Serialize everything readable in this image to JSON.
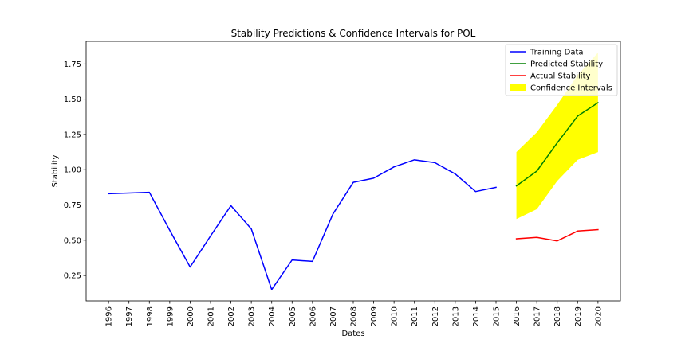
{
  "chart_data": {
    "type": "line",
    "title": "Stability Predictions & Confidence Intervals for POL",
    "xlabel": "Dates",
    "ylabel": "Stability",
    "xlim": [
      1994.9,
      2021.1
    ],
    "ylim": [
      0.07,
      1.91
    ],
    "x_ticks": [
      "1996",
      "1997",
      "1998",
      "1999",
      "2000",
      "2001",
      "2002",
      "2003",
      "2004",
      "2005",
      "2006",
      "2007",
      "2008",
      "2009",
      "2010",
      "2011",
      "2012",
      "2013",
      "2014",
      "2015",
      "2016",
      "2017",
      "2018",
      "2019",
      "2020"
    ],
    "y_ticks": [
      "0.25",
      "0.50",
      "0.75",
      "1.00",
      "1.25",
      "1.50",
      "1.75"
    ],
    "grid": false,
    "legend_position": "top-right",
    "series": [
      {
        "name": "Training Data",
        "color": "#0000ff",
        "x": [
          1996,
          1997,
          1998,
          1999,
          2000,
          2001,
          2002,
          2003,
          2004,
          2005,
          2006,
          2007,
          2008,
          2009,
          2010,
          2011,
          2012,
          2013,
          2014,
          2015
        ],
        "values": [
          0.83,
          0.835,
          0.84,
          0.57,
          0.31,
          0.53,
          0.745,
          0.58,
          0.15,
          0.36,
          0.35,
          0.685,
          0.91,
          0.94,
          1.02,
          1.07,
          1.05,
          0.97,
          0.845,
          0.875
        ]
      },
      {
        "name": "Predicted Stability",
        "color": "#008000",
        "x": [
          2016,
          2017,
          2018,
          2019,
          2020
        ],
        "values": [
          0.885,
          0.99,
          1.19,
          1.38,
          1.475
        ]
      },
      {
        "name": "Actual Stability",
        "color": "#ff0000",
        "x": [
          2016,
          2017,
          2018,
          2019,
          2020
        ],
        "values": [
          0.51,
          0.52,
          0.495,
          0.565,
          0.575
        ]
      }
    ],
    "band": {
      "name": "Confidence Intervals",
      "color": "#ffff00",
      "x": [
        2016,
        2017,
        2018,
        2019,
        2020
      ],
      "lower": [
        0.65,
        0.72,
        0.92,
        1.07,
        1.125
      ],
      "upper": [
        1.125,
        1.265,
        1.46,
        1.67,
        1.83
      ]
    }
  }
}
